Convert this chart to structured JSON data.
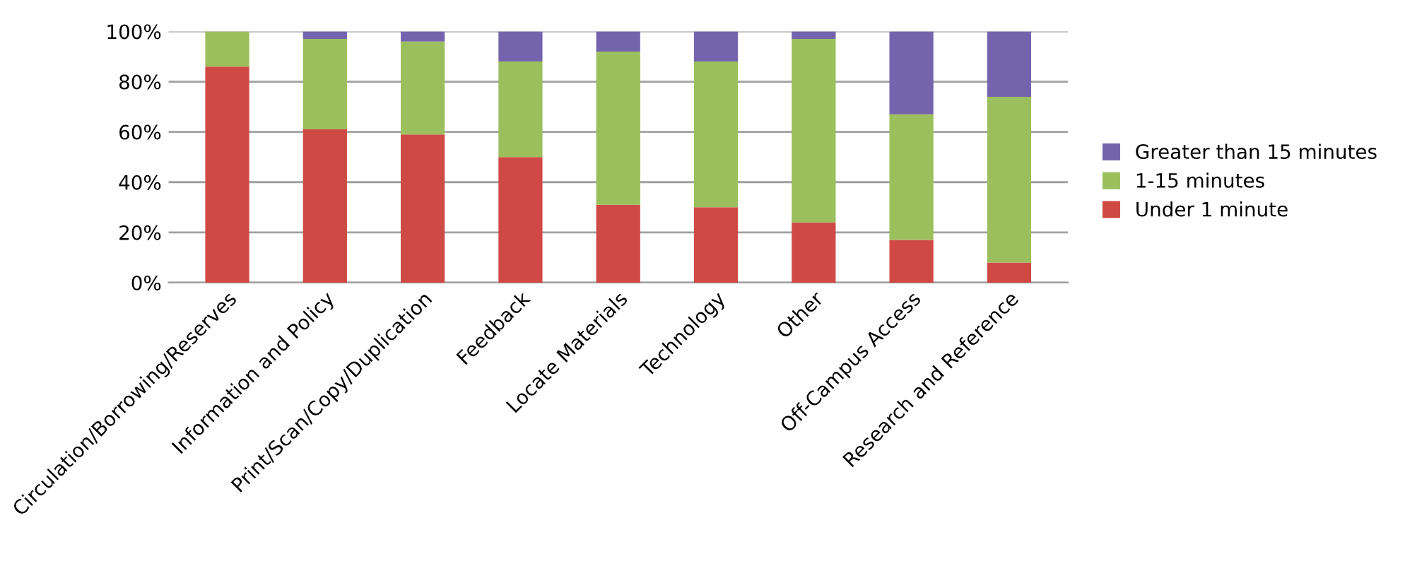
{
  "chart_data": {
    "type": "bar",
    "stacked": true,
    "categories": [
      "Circulation/Borrowing/Reserves",
      "Information and Policy",
      "Print/Scan/Copy/Duplication",
      "Feedback",
      "Locate Materials",
      "Technology",
      "Other",
      "Off-Campus Access",
      "Research and Reference"
    ],
    "series": [
      {
        "name": "Under 1 minute",
        "color": "#d04a45",
        "values": [
          86,
          61,
          59,
          50,
          31,
          30,
          24,
          17,
          8
        ]
      },
      {
        "name": "1-15 minutes",
        "color": "#9bbf5c",
        "values": [
          14,
          36,
          37,
          38,
          61,
          58,
          73,
          50,
          66
        ]
      },
      {
        "name": "Greater than 15 minutes",
        "color": "#7464ad",
        "values": [
          0,
          3,
          4,
          12,
          8,
          12,
          3,
          33,
          26
        ]
      }
    ],
    "ylim": [
      0,
      100
    ],
    "yticks": [
      {
        "value": 0,
        "label": "0%"
      },
      {
        "value": 20,
        "label": "20%"
      },
      {
        "value": 40,
        "label": "40%"
      },
      {
        "value": 60,
        "label": "60%"
      },
      {
        "value": 80,
        "label": "80%"
      },
      {
        "value": 100,
        "label": "100%"
      }
    ],
    "grid": "y",
    "legend": "right"
  }
}
